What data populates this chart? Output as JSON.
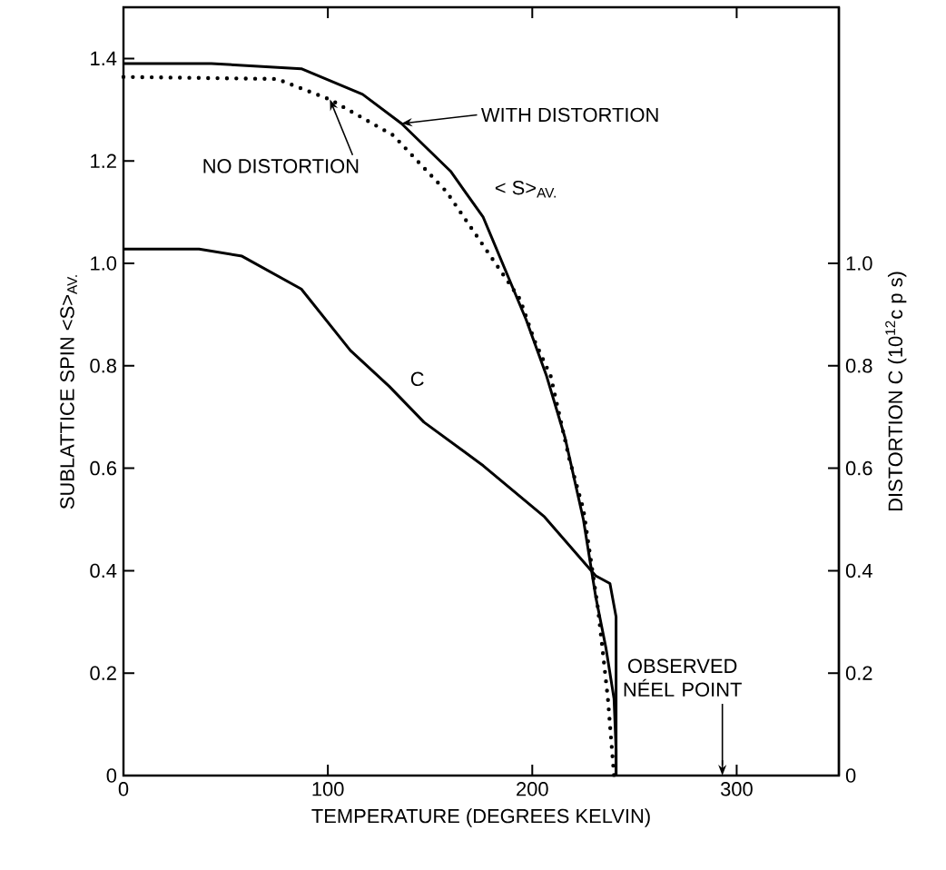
{
  "chart_data": {
    "type": "line",
    "xlabel": "TEMPERATURE  (DEGREES KELVIN)",
    "ylabel": "SUBLATTICE SPIN <S>$_{AV.}$",
    "y2label": "DISTORTION C (10$^{12}$c p s)",
    "xlim": [
      0,
      350
    ],
    "xticks": [
      0,
      100,
      200,
      300
    ],
    "ylim": [
      0,
      1.5
    ],
    "yticks": [
      0,
      0.2,
      0.4,
      0.6,
      0.8,
      {
        "value": 1.0,
        "label": "1.0"
      },
      1.2,
      1.4
    ],
    "y2lim": [
      0,
      1.5
    ],
    "y2ticks": [
      0,
      0.2,
      0.4,
      0.6,
      0.8,
      {
        "value": 1.0,
        "label": "1.0"
      }
    ],
    "series": [
      {
        "name": "WITH DISTORTION",
        "color": "#000000",
        "line_style": "solid",
        "x": [
          0,
          43,
          87,
          117,
          136,
          160,
          176,
          197,
          207,
          216,
          225,
          231,
          236,
          240,
          241,
          241
        ],
        "values": [
          1.39,
          1.39,
          1.38,
          1.33,
          1.273,
          1.18,
          1.09,
          0.89,
          0.78,
          0.66,
          0.5,
          0.35,
          0.25,
          0.15,
          0.05,
          0
        ]
      },
      {
        "name": "NO DISTORTION",
        "color": "#000000",
        "line_style": "dotted",
        "x": [
          0,
          75,
          101,
          132,
          158,
          182,
          194,
          201,
          209,
          218,
          225,
          232,
          234,
          237,
          240
        ],
        "values": [
          1.364,
          1.36,
          1.32,
          1.25,
          1.14,
          1.0,
          0.93,
          0.85,
          0.78,
          0.62,
          0.52,
          0.33,
          0.26,
          0.15,
          0
        ]
      },
      {
        "name": "C",
        "color": "#000000",
        "line_style": "solid",
        "axis": "y2",
        "x": [
          0,
          37,
          58,
          87,
          111,
          130,
          147,
          176,
          206,
          231,
          238,
          241,
          241
        ],
        "values": [
          1.028,
          1.028,
          1.014,
          0.95,
          0.83,
          0.76,
          0.69,
          0.605,
          0.505,
          0.39,
          0.375,
          0.31,
          0
        ]
      }
    ],
    "ref_lines": [
      {
        "axis": "x",
        "value": 293,
        "label": "OBSERVED NÉEL POINT"
      }
    ],
    "annotations": [
      "< S>$_{AV.}$"
    ]
  }
}
